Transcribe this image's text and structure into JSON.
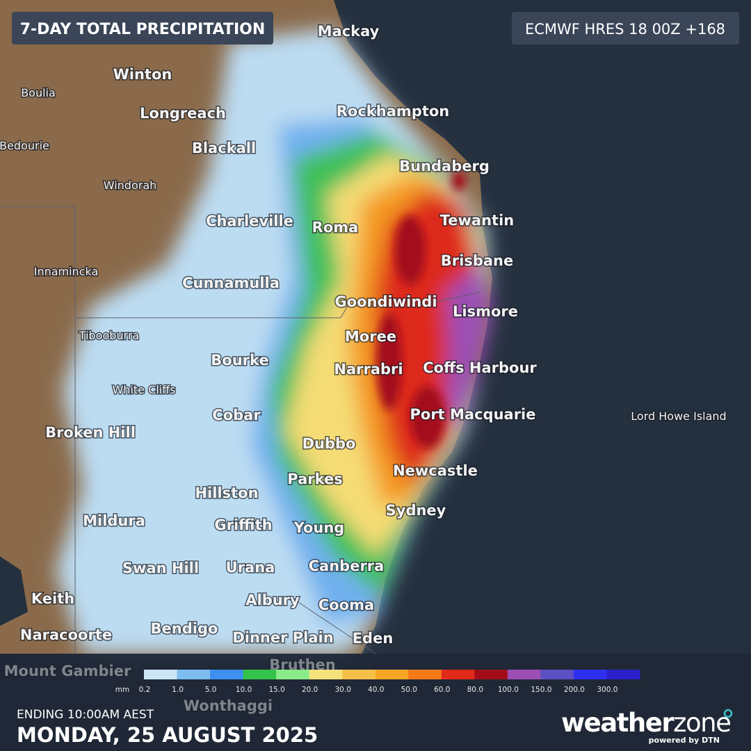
{
  "header": {
    "title": "7-DAY TOTAL PRECIPITATION",
    "model": "ECMWF HRES 18 00Z +168"
  },
  "places": [
    "Mackay",
    "Winton",
    "Boulia",
    "Longreach",
    "Rockhampton",
    "Bedourie",
    "Blackall",
    "Bundaberg",
    "Windorah",
    "Charleville",
    "Roma",
    "Tewantin",
    "Brisbane",
    "Innamincka",
    "Cunnamulla",
    "Goondiwindi",
    "Lismore",
    "Tibooburra",
    "Moree",
    "Bourke",
    "Narrabri",
    "Coffs Harbour",
    "White Cliffs",
    "Cobar",
    "Port Macquarie",
    "Lord Howe Island",
    "Broken Hill",
    "Dubbo",
    "Newcastle",
    "Parkes",
    "Hillston",
    "Sydney",
    "Mildura",
    "Griffith",
    "Young",
    "Swan Hill",
    "Urana",
    "Canberra",
    "Keith",
    "Albury",
    "Cooma",
    "Naracoorte",
    "Bendigo",
    "Dinner Plain",
    "Eden",
    "Mount Gambier",
    "Bruthen",
    "Wonthaggi"
  ],
  "legend": {
    "unit": "mm",
    "items": [
      {
        "label": "0.2",
        "color": "#cde6f7"
      },
      {
        "label": "1.0",
        "color": "#7dbdf0"
      },
      {
        "label": "5.0",
        "color": "#3d8ff0"
      },
      {
        "label": "10.0",
        "color": "#33c24a"
      },
      {
        "label": "15.0",
        "color": "#8aeb8a"
      },
      {
        "label": "20.0",
        "color": "#f5e27a"
      },
      {
        "label": "30.0",
        "color": "#f5c04a"
      },
      {
        "label": "40.0",
        "color": "#f5a623"
      },
      {
        "label": "50.0",
        "color": "#f57a1a"
      },
      {
        "label": "60.0",
        "color": "#e02a1a"
      },
      {
        "label": "80.0",
        "color": "#a30d1a"
      },
      {
        "label": "100.0",
        "color": "#9b4fb5"
      },
      {
        "label": "150.0",
        "color": "#5c4fc2"
      },
      {
        "label": "200.0",
        "color": "#2f2ff0"
      },
      {
        "label": "300.0",
        "color": "#2a1fc9"
      }
    ]
  },
  "footer": {
    "ending": "ENDING 10:00AM AEST",
    "date": "MONDAY, 25 AUGUST 2025",
    "brand_a": "weather",
    "brand_b": "zone",
    "powered": "powered by DTN"
  }
}
